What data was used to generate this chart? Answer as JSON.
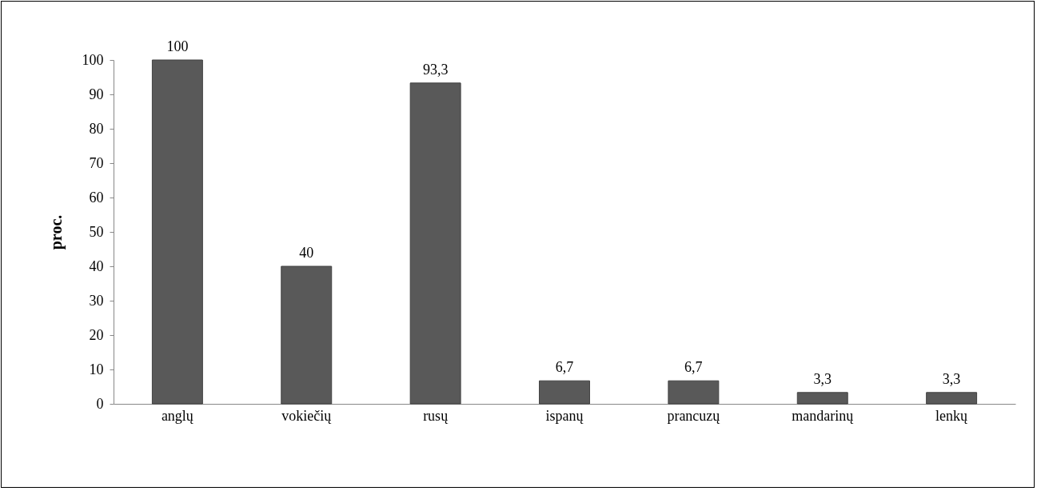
{
  "chart_data": {
    "type": "bar",
    "ylabel": "proc.",
    "categories": [
      "anglų",
      "vokiečių",
      "rusų",
      "ispanų",
      "prancuzų",
      "mandarinų",
      "lenkų"
    ],
    "values": [
      100,
      40,
      93.3,
      6.7,
      6.7,
      3.3,
      3.3
    ],
    "value_labels": [
      "100",
      "40",
      "93,3",
      "6,7",
      "6,7",
      "3,3",
      "3,3"
    ],
    "color": "#595959",
    "ylim": [
      0,
      100
    ],
    "yticks": [
      0,
      10,
      20,
      30,
      40,
      50,
      60,
      70,
      80,
      90,
      100
    ],
    "grid": false
  }
}
